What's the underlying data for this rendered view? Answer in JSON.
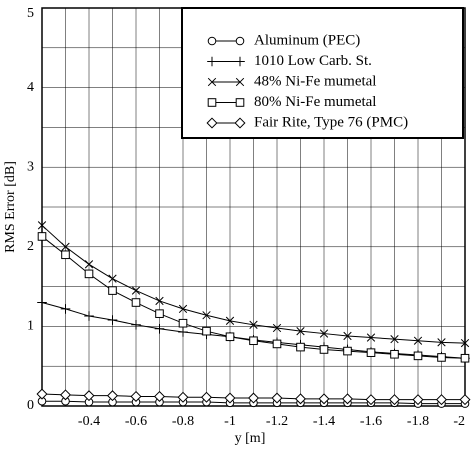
{
  "chart_data": {
    "type": "line",
    "ylabel": "RMS Error [dB]",
    "xlabel": "y [m]",
    "x": [
      -0.2,
      -0.3,
      -0.4,
      -0.5,
      -0.6,
      -0.7,
      -0.8,
      -0.9,
      -1,
      -1.1,
      -1.2,
      -1.3,
      -1.4,
      -1.5,
      -1.6,
      -1.7,
      -1.8,
      -1.9,
      -2
    ],
    "xlim": [
      -0.2,
      -2
    ],
    "xticks": [
      -0.4,
      -0.6,
      -0.8,
      -1,
      -1.2,
      -1.4,
      -1.6,
      -1.8,
      -2
    ],
    "xminorticks": [
      -0.2,
      -0.3,
      -0.5,
      -0.7,
      -0.9,
      -1.1,
      -1.3,
      -1.5,
      -1.7,
      -1.9
    ],
    "ylim": [
      0,
      5
    ],
    "yticks": [
      0,
      1,
      2,
      3,
      4,
      5
    ],
    "yminorticks": [
      0.5,
      1.5,
      2.5,
      3.5,
      4.5
    ],
    "grid": true,
    "legend": "upper right",
    "series": [
      {
        "name": "Aluminum (PEC)",
        "color": "#000000",
        "marker": "circle",
        "values": [
          0.06,
          0.06,
          0.05,
          0.05,
          0.05,
          0.05,
          0.05,
          0.05,
          0.04,
          0.04,
          0.04,
          0.04,
          0.04,
          0.04,
          0.04,
          0.04,
          0.03,
          0.03,
          0.03
        ]
      },
      {
        "name": "1010 Low Carb. St.",
        "color": "#000000",
        "marker": "plus",
        "values": [
          1.3,
          1.22,
          1.13,
          1.08,
          1.02,
          0.97,
          0.93,
          0.9,
          0.87,
          0.83,
          0.8,
          0.77,
          0.74,
          0.71,
          0.68,
          0.66,
          0.64,
          0.62,
          0.6
        ]
      },
      {
        "name": "48% Ni-Fe mumetal",
        "color": "#000000",
        "marker": "x",
        "values": [
          2.27,
          2.0,
          1.78,
          1.6,
          1.45,
          1.32,
          1.22,
          1.14,
          1.07,
          1.02,
          0.98,
          0.94,
          0.91,
          0.88,
          0.86,
          0.84,
          0.82,
          0.8,
          0.79
        ]
      },
      {
        "name": "80% Ni-Fe mumetal",
        "color": "#000000",
        "marker": "square",
        "values": [
          2.13,
          1.9,
          1.66,
          1.45,
          1.3,
          1.16,
          1.04,
          0.94,
          0.87,
          0.82,
          0.78,
          0.74,
          0.71,
          0.69,
          0.67,
          0.65,
          0.63,
          0.61,
          0.6
        ]
      },
      {
        "name": "Fair Rite, Type 76 (PMC)",
        "color": "#000000",
        "marker": "diamond",
        "values": [
          0.15,
          0.14,
          0.13,
          0.13,
          0.12,
          0.12,
          0.11,
          0.11,
          0.1,
          0.1,
          0.1,
          0.09,
          0.09,
          0.09,
          0.08,
          0.08,
          0.08,
          0.08,
          0.08
        ]
      }
    ]
  }
}
